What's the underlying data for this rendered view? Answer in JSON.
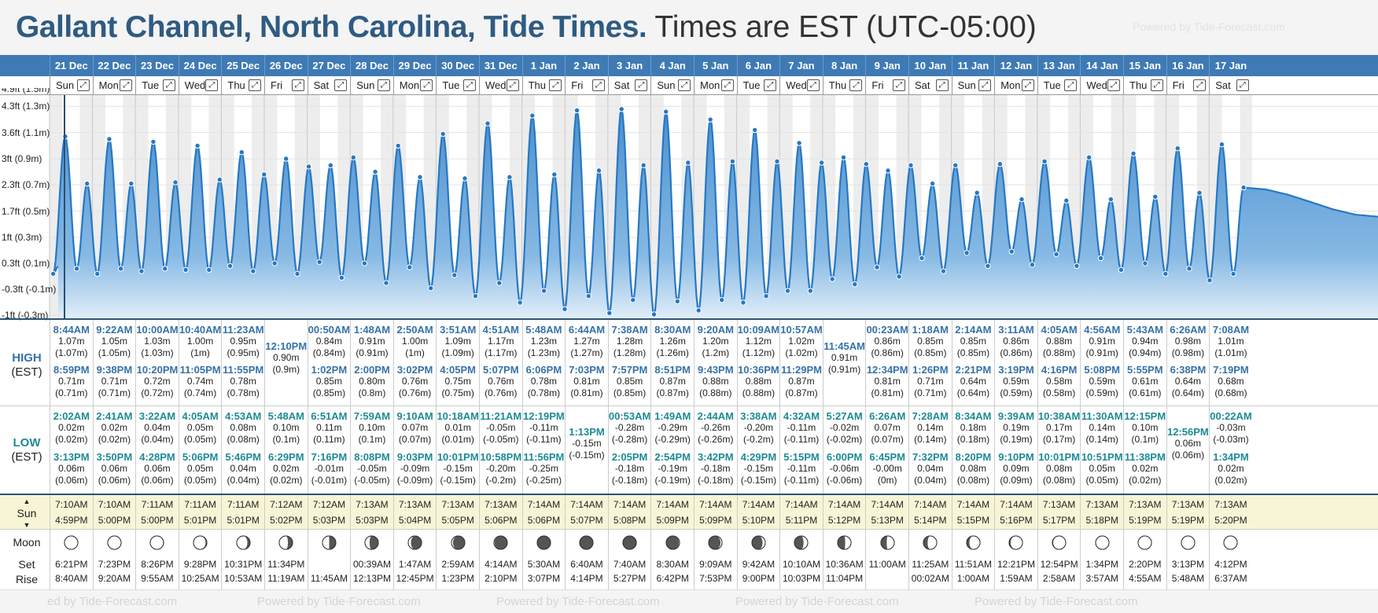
{
  "header": {
    "title_bold": "Gallant Channel, North Carolina, Tide Times.",
    "title_normal": " Times are EST (UTC-05:00)",
    "powered": "Powered by Tide-Forecast.com",
    "footer_powered": "Powered by Tide-Forecast.com",
    "footer_partial": "ed by Tide-Forecast.com"
  },
  "labels": {
    "high": "HIGH",
    "high_tz": "(EST)",
    "low": "LOW",
    "low_tz": "(EST)",
    "sun": "Sun",
    "moon": "Moon",
    "set": "Set",
    "rise": "Rise",
    "expand_icon": "expand-icon",
    "sun_arrows": "sun-arrows-icon"
  },
  "colors": {
    "accent": "#3f7ab5",
    "title": "#2f5b82",
    "tide_line": "#2778c2",
    "high_time": "#3672a8",
    "low_time": "#1d8a94",
    "sun_row": "#f7f5d6"
  },
  "chart_data": {
    "type": "area",
    "title": "",
    "xlabel": "",
    "ylabel": "",
    "ylim": [
      -1.05,
      4.55
    ],
    "y_ticks": [
      "4.3ft (1.3m)",
      "3.6ft (1.1m)",
      "3ft (0.9m)",
      "2.3ft (0.7m)",
      "1.7ft (0.5m)",
      "1ft (0.3m)",
      "0.3ft (0.1m)",
      "-0.3ft (-0.1m)",
      "-1ft (-0.3m)"
    ],
    "y_tick_values": [
      4.27,
      3.61,
      2.95,
      2.3,
      1.64,
      0.98,
      0.33,
      -0.33,
      -0.98
    ],
    "top_partial_tick": "4.9ft (1.5m)",
    "x_categories": [
      "21 Dec",
      "22 Dec",
      "23 Dec",
      "24 Dec",
      "25 Dec",
      "26 Dec",
      "27 Dec",
      "28 Dec",
      "29 Dec",
      "30 Dec",
      "31 Dec",
      "1 Jan",
      "2 Jan",
      "3 Jan",
      "4 Jan",
      "5 Jan",
      "6 Jan",
      "7 Jan",
      "8 Jan",
      "9 Jan",
      "10 Jan",
      "11 Jan",
      "12 Jan",
      "13 Jan",
      "14 Jan",
      "15 Jan",
      "16 Jan",
      "17 Jan"
    ],
    "series": []
  },
  "days": [
    {
      "date": "21 Dec",
      "wd": "Sun",
      "highs": [
        [
          "8:44AM",
          "1.07m",
          "(1.07m)"
        ],
        [
          "8:59PM",
          "0.71m",
          "(0.71m)"
        ]
      ],
      "lows": [
        [
          "2:02AM",
          "0.02m",
          "(0.02m)"
        ],
        [
          "3:13PM",
          "0.06m",
          "(0.06m)"
        ]
      ],
      "sun": [
        "7:10AM",
        "4:59PM"
      ],
      "moon": [
        "6:21PM",
        "8:40AM"
      ],
      "phase": 0.48
    },
    {
      "date": "22 Dec",
      "wd": "Mon",
      "highs": [
        [
          "9:22AM",
          "1.05m",
          "(1.05m)"
        ],
        [
          "9:38PM",
          "0.71m",
          "(0.71m)"
        ]
      ],
      "lows": [
        [
          "2:41AM",
          "0.02m",
          "(0.02m)"
        ],
        [
          "3:50PM",
          "0.06m",
          "(0.06m)"
        ]
      ],
      "sun": [
        "7:10AM",
        "5:00PM"
      ],
      "moon": [
        "7:23PM",
        "9:20AM"
      ],
      "phase": 0.52
    },
    {
      "date": "23 Dec",
      "wd": "Tue",
      "highs": [
        [
          "10:00AM",
          "1.03m",
          "(1.03m)"
        ],
        [
          "10:20PM",
          "0.72m",
          "(0.72m)"
        ]
      ],
      "lows": [
        [
          "3:22AM",
          "0.04m",
          "(0.04m)"
        ],
        [
          "4:28PM",
          "0.06m",
          "(0.06m)"
        ]
      ],
      "sun": [
        "7:11AM",
        "5:00PM"
      ],
      "moon": [
        "8:26PM",
        "9:55AM"
      ],
      "phase": 0.56
    },
    {
      "date": "24 Dec",
      "wd": "Wed",
      "highs": [
        [
          "10:40AM",
          "1.00m",
          "(1m)"
        ],
        [
          "11:05PM",
          "0.74m",
          "(0.74m)"
        ]
      ],
      "lows": [
        [
          "4:05AM",
          "0.05m",
          "(0.05m)"
        ],
        [
          "5:06PM",
          "0.05m",
          "(0.05m)"
        ]
      ],
      "sun": [
        "7:11AM",
        "5:01PM"
      ],
      "moon": [
        "9:28PM",
        "10:25AM"
      ],
      "phase": 0.6
    },
    {
      "date": "25 Dec",
      "wd": "Thu",
      "highs": [
        [
          "11:23AM",
          "0.95m",
          "(0.95m)"
        ],
        [
          "11:55PM",
          "0.78m",
          "(0.78m)"
        ]
      ],
      "lows": [
        [
          "4:53AM",
          "0.08m",
          "(0.08m)"
        ],
        [
          "5:46PM",
          "0.04m",
          "(0.04m)"
        ]
      ],
      "sun": [
        "7:11AM",
        "5:01PM"
      ],
      "moon": [
        "10:31PM",
        "10:53AM"
      ],
      "phase": 0.65
    },
    {
      "date": "26 Dec",
      "wd": "Fri",
      "highs": [
        [
          "12:10PM",
          "0.90m",
          "(0.9m)"
        ]
      ],
      "lows": [
        [
          "5:48AM",
          "0.10m",
          "(0.1m)"
        ],
        [
          "6:29PM",
          "0.02m",
          "(0.02m)"
        ]
      ],
      "sun": [
        "7:12AM",
        "5:02PM"
      ],
      "moon": [
        "11:34PM",
        "11:19AM"
      ],
      "phase": 0.7
    },
    {
      "date": "27 Dec",
      "wd": "Sat",
      "highs": [
        [
          "00:50AM",
          "0.84m",
          "(0.84m)"
        ],
        [
          "1:02PM",
          "0.85m",
          "(0.85m)"
        ]
      ],
      "lows": [
        [
          "6:51AM",
          "0.11m",
          "(0.11m)"
        ],
        [
          "7:16PM",
          "-0.01m",
          "(-0.01m)"
        ]
      ],
      "sun": [
        "7:12AM",
        "5:03PM"
      ],
      "moon": [
        "",
        "11:45AM"
      ],
      "phase": 0.75
    },
    {
      "date": "28 Dec",
      "wd": "Sun",
      "highs": [
        [
          "1:48AM",
          "0.91m",
          "(0.91m)"
        ],
        [
          "2:00PM",
          "0.80m",
          "(0.8m)"
        ]
      ],
      "lows": [
        [
          "7:59AM",
          "0.10m",
          "(0.1m)"
        ],
        [
          "8:08PM",
          "-0.05m",
          "(-0.05m)"
        ]
      ],
      "sun": [
        "7:13AM",
        "5:03PM"
      ],
      "moon": [
        "00:39AM",
        "12:13PM"
      ],
      "phase": 0.8
    },
    {
      "date": "29 Dec",
      "wd": "Mon",
      "highs": [
        [
          "2:50AM",
          "1.00m",
          "(1m)"
        ],
        [
          "3:02PM",
          "0.76m",
          "(0.76m)"
        ]
      ],
      "lows": [
        [
          "9:10AM",
          "0.07m",
          "(0.07m)"
        ],
        [
          "9:03PM",
          "-0.09m",
          "(-0.09m)"
        ]
      ],
      "sun": [
        "7:13AM",
        "5:04PM"
      ],
      "moon": [
        "1:47AM",
        "12:45PM"
      ],
      "phase": 0.85
    },
    {
      "date": "30 Dec",
      "wd": "Tue",
      "highs": [
        [
          "3:51AM",
          "1.09m",
          "(1.09m)"
        ],
        [
          "4:05PM",
          "0.75m",
          "(0.75m)"
        ]
      ],
      "lows": [
        [
          "10:18AM",
          "0.01m",
          "(0.01m)"
        ],
        [
          "10:01PM",
          "-0.15m",
          "(-0.15m)"
        ]
      ],
      "sun": [
        "7:13AM",
        "5:05PM"
      ],
      "moon": [
        "2:59AM",
        "1:23PM"
      ],
      "phase": 0.89
    },
    {
      "date": "31 Dec",
      "wd": "Wed",
      "highs": [
        [
          "4:51AM",
          "1.17m",
          "(1.17m)"
        ],
        [
          "5:07PM",
          "0.76m",
          "(0.76m)"
        ]
      ],
      "lows": [
        [
          "11:21AM",
          "-0.05m",
          "(-0.05m)"
        ],
        [
          "10:58PM",
          "-0.20m",
          "(-0.2m)"
        ]
      ],
      "sun": [
        "7:13AM",
        "5:06PM"
      ],
      "moon": [
        "4:14AM",
        "2:10PM"
      ],
      "phase": 0.93
    },
    {
      "date": "1 Jan",
      "wd": "Thu",
      "highs": [
        [
          "5:48AM",
          "1.23m",
          "(1.23m)"
        ],
        [
          "6:06PM",
          "0.78m",
          "(0.78m)"
        ]
      ],
      "lows": [
        [
          "12:19PM",
          "-0.11m",
          "(-0.11m)"
        ],
        [
          "11:56PM",
          "-0.25m",
          "(-0.25m)"
        ]
      ],
      "sun": [
        "7:14AM",
        "5:06PM"
      ],
      "moon": [
        "5:30AM",
        "3:07PM"
      ],
      "phase": 0.97
    },
    {
      "date": "2 Jan",
      "wd": "Fri",
      "highs": [
        [
          "6:44AM",
          "1.27m",
          "(1.27m)"
        ],
        [
          "7:03PM",
          "0.81m",
          "(0.81m)"
        ]
      ],
      "lows": [
        [
          "1:13PM",
          "-0.15m",
          "(-0.15m)"
        ]
      ],
      "sun": [
        "7:14AM",
        "5:07PM"
      ],
      "moon": [
        "6:40AM",
        "4:14PM"
      ],
      "phase": 0.0
    },
    {
      "date": "3 Jan",
      "wd": "Sat",
      "highs": [
        [
          "7:38AM",
          "1.28m",
          "(1.28m)"
        ],
        [
          "7:57PM",
          "0.85m",
          "(0.85m)"
        ]
      ],
      "lows": [
        [
          "00:53AM",
          "-0.28m",
          "(-0.28m)"
        ],
        [
          "2:05PM",
          "-0.18m",
          "(-0.18m)"
        ]
      ],
      "sun": [
        "7:14AM",
        "5:08PM"
      ],
      "moon": [
        "7:40AM",
        "5:27PM"
      ],
      "phase": 0.03
    },
    {
      "date": "4 Jan",
      "wd": "Sun",
      "highs": [
        [
          "8:30AM",
          "1.26m",
          "(1.26m)"
        ],
        [
          "8:51PM",
          "0.87m",
          "(0.87m)"
        ]
      ],
      "lows": [
        [
          "1:49AM",
          "-0.29m",
          "(-0.29m)"
        ],
        [
          "2:54PM",
          "-0.19m",
          "(-0.19m)"
        ]
      ],
      "sun": [
        "7:14AM",
        "5:09PM"
      ],
      "moon": [
        "8:30AM",
        "6:42PM"
      ],
      "phase": 0.07
    },
    {
      "date": "5 Jan",
      "wd": "Mon",
      "highs": [
        [
          "9:20AM",
          "1.20m",
          "(1.2m)"
        ],
        [
          "9:43PM",
          "0.88m",
          "(0.88m)"
        ]
      ],
      "lows": [
        [
          "2:44AM",
          "-0.26m",
          "(-0.26m)"
        ],
        [
          "3:42PM",
          "-0.18m",
          "(-0.18m)"
        ]
      ],
      "sun": [
        "7:14AM",
        "5:09PM"
      ],
      "moon": [
        "9:09AM",
        "7:53PM"
      ],
      "phase": 0.11
    },
    {
      "date": "6 Jan",
      "wd": "Tue",
      "highs": [
        [
          "10:09AM",
          "1.12m",
          "(1.12m)"
        ],
        [
          "10:36PM",
          "0.88m",
          "(0.88m)"
        ]
      ],
      "lows": [
        [
          "3:38AM",
          "-0.20m",
          "(-0.2m)"
        ],
        [
          "4:29PM",
          "-0.15m",
          "(-0.15m)"
        ]
      ],
      "sun": [
        "7:14AM",
        "5:10PM"
      ],
      "moon": [
        "9:42AM",
        "9:00PM"
      ],
      "phase": 0.15
    },
    {
      "date": "7 Jan",
      "wd": "Wed",
      "highs": [
        [
          "10:57AM",
          "1.02m",
          "(1.02m)"
        ],
        [
          "11:29PM",
          "0.87m",
          "(0.87m)"
        ]
      ],
      "lows": [
        [
          "4:32AM",
          "-0.11m",
          "(-0.11m)"
        ],
        [
          "5:15PM",
          "-0.11m",
          "(-0.11m)"
        ]
      ],
      "sun": [
        "7:14AM",
        "5:11PM"
      ],
      "moon": [
        "10:10AM",
        "10:03PM"
      ],
      "phase": 0.19
    },
    {
      "date": "8 Jan",
      "wd": "Thu",
      "highs": [
        [
          "11:45AM",
          "0.91m",
          "(0.91m)"
        ]
      ],
      "lows": [
        [
          "5:27AM",
          "-0.02m",
          "(-0.02m)"
        ],
        [
          "6:00PM",
          "-0.06m",
          "(-0.06m)"
        ]
      ],
      "sun": [
        "7:14AM",
        "5:12PM"
      ],
      "moon": [
        "10:36AM",
        "11:04PM"
      ],
      "phase": 0.23
    },
    {
      "date": "9 Jan",
      "wd": "Fri",
      "highs": [
        [
          "00:23AM",
          "0.86m",
          "(0.86m)"
        ],
        [
          "12:34PM",
          "0.81m",
          "(0.81m)"
        ]
      ],
      "lows": [
        [
          "6:26AM",
          "0.07m",
          "(0.07m)"
        ],
        [
          "6:45PM",
          "-0.00m",
          "(0m)"
        ]
      ],
      "sun": [
        "7:14AM",
        "5:13PM"
      ],
      "moon": [
        "11:00AM",
        ""
      ],
      "phase": 0.27
    },
    {
      "date": "10 Jan",
      "wd": "Sat",
      "highs": [
        [
          "1:18AM",
          "0.85m",
          "(0.85m)"
        ],
        [
          "1:26PM",
          "0.71m",
          "(0.71m)"
        ]
      ],
      "lows": [
        [
          "7:28AM",
          "0.14m",
          "(0.14m)"
        ],
        [
          "7:32PM",
          "0.04m",
          "(0.04m)"
        ]
      ],
      "sun": [
        "7:14AM",
        "5:14PM"
      ],
      "moon": [
        "11:25AM",
        "00:02AM"
      ],
      "phase": 0.31
    },
    {
      "date": "11 Jan",
      "wd": "Sun",
      "highs": [
        [
          "2:14AM",
          "0.85m",
          "(0.85m)"
        ],
        [
          "2:21PM",
          "0.64m",
          "(0.64m)"
        ]
      ],
      "lows": [
        [
          "8:34AM",
          "0.18m",
          "(0.18m)"
        ],
        [
          "8:20PM",
          "0.08m",
          "(0.08m)"
        ]
      ],
      "sun": [
        "7:14AM",
        "5:15PM"
      ],
      "moon": [
        "11:51AM",
        "1:00AM"
      ],
      "phase": 0.35
    },
    {
      "date": "12 Jan",
      "wd": "Mon",
      "highs": [
        [
          "3:11AM",
          "0.86m",
          "(0.86m)"
        ],
        [
          "3:19PM",
          "0.59m",
          "(0.59m)"
        ]
      ],
      "lows": [
        [
          "9:39AM",
          "0.19m",
          "(0.19m)"
        ],
        [
          "9:10PM",
          "0.09m",
          "(0.09m)"
        ]
      ],
      "sun": [
        "7:14AM",
        "5:16PM"
      ],
      "moon": [
        "12:21PM",
        "1:59AM"
      ],
      "phase": 0.39
    },
    {
      "date": "13 Jan",
      "wd": "Tue",
      "highs": [
        [
          "4:05AM",
          "0.88m",
          "(0.88m)"
        ],
        [
          "4:16PM",
          "0.58m",
          "(0.58m)"
        ]
      ],
      "lows": [
        [
          "10:38AM",
          "0.17m",
          "(0.17m)"
        ],
        [
          "10:01PM",
          "0.08m",
          "(0.08m)"
        ]
      ],
      "sun": [
        "7:13AM",
        "5:17PM"
      ],
      "moon": [
        "12:54PM",
        "2:58AM"
      ],
      "phase": 0.42
    },
    {
      "date": "14 Jan",
      "wd": "Wed",
      "highs": [
        [
          "4:56AM",
          "0.91m",
          "(0.91m)"
        ],
        [
          "5:08PM",
          "0.59m",
          "(0.59m)"
        ]
      ],
      "lows": [
        [
          "11:30AM",
          "0.14m",
          "(0.14m)"
        ],
        [
          "10:51PM",
          "0.05m",
          "(0.05m)"
        ]
      ],
      "sun": [
        "7:13AM",
        "5:18PM"
      ],
      "moon": [
        "1:34PM",
        "3:57AM"
      ],
      "phase": 0.45
    },
    {
      "date": "15 Jan",
      "wd": "Thu",
      "highs": [
        [
          "5:43AM",
          "0.94m",
          "(0.94m)"
        ],
        [
          "5:55PM",
          "0.61m",
          "(0.61m)"
        ]
      ],
      "lows": [
        [
          "12:15PM",
          "0.10m",
          "(0.1m)"
        ],
        [
          "11:38PM",
          "0.02m",
          "(0.02m)"
        ]
      ],
      "sun": [
        "7:13AM",
        "5:19PM"
      ],
      "moon": [
        "2:20PM",
        "4:55AM"
      ],
      "phase": 0.48
    },
    {
      "date": "16 Jan",
      "wd": "Fri",
      "highs": [
        [
          "6:26AM",
          "0.98m",
          "(0.98m)"
        ],
        [
          "6:38PM",
          "0.64m",
          "(0.64m)"
        ]
      ],
      "lows": [
        [
          "12:56PM",
          "0.06m",
          "(0.06m)"
        ]
      ],
      "sun": [
        "7:13AM",
        "5:19PM"
      ],
      "moon": [
        "3:13PM",
        "5:48AM"
      ],
      "phase": 0.5
    },
    {
      "date": "17 Jan",
      "wd": "Sat",
      "highs": [
        [
          "7:08AM",
          "1.01m",
          "(1.01m)"
        ],
        [
          "7:19PM",
          "0.68m",
          "(0.68m)"
        ]
      ],
      "lows": [
        [
          "00:22AM",
          "-0.03m",
          "(-0.03m)"
        ],
        [
          "1:34PM",
          "0.02m",
          "(0.02m)"
        ]
      ],
      "sun": [
        "7:13AM",
        "5:20PM"
      ],
      "moon": [
        "4:12PM",
        "6:37AM"
      ],
      "phase": 0.52
    }
  ]
}
